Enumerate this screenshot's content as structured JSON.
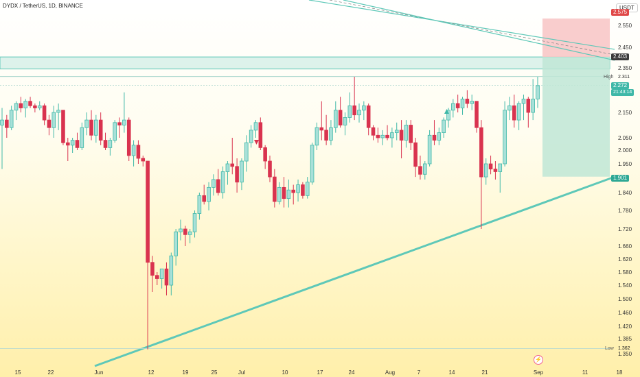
{
  "header": {
    "title": "DYDX / TetherUS, 1D, BINANCE",
    "currency": "USDT"
  },
  "price_axis": {
    "ticks": [
      "2.550",
      "2.450",
      "2.350",
      "2.150",
      "2.050",
      "2.000",
      "1.950",
      "1.840",
      "1.780",
      "1.720",
      "1.660",
      "1.620",
      "1.580",
      "1.540",
      "1.500",
      "1.460",
      "1.420",
      "1.385",
      "1.350"
    ],
    "labels": {
      "target": "2.575",
      "zone_top": "2.403",
      "high_tag": "High",
      "high": "2.311",
      "last": "2.272",
      "countdown": "21:43:14",
      "stop": "1.901",
      "low_tag": "Low",
      "low": "1.362"
    }
  },
  "time_axis": {
    "ticks": [
      "15",
      "22",
      "Jun",
      "12",
      "19",
      "25",
      "Jul",
      "10",
      "17",
      "24",
      "Aug",
      "7",
      "14",
      "21",
      "Sep",
      "11",
      "18"
    ]
  },
  "colors": {
    "up": "#3fb8a8",
    "down": "#d9334f",
    "zone": "#8fd6cc",
    "trendline": "#5ec8b8",
    "stop_zone": "#f8c4c4",
    "target_zone": "#bfe6d6"
  },
  "chart_data": {
    "type": "candlestick",
    "symbol": "DYDX / TetherUS",
    "timeframe": "1D",
    "exchange": "BINANCE",
    "x_range": [
      "May 15",
      "Sep 18"
    ],
    "y_range": [
      1.35,
      2.6
    ],
    "ohlc": [
      [
        2.1,
        2.17,
        1.93,
        2.12
      ],
      [
        2.12,
        2.14,
        2.05,
        2.09
      ],
      [
        2.09,
        2.18,
        2.08,
        2.16
      ],
      [
        2.16,
        2.2,
        2.12,
        2.19
      ],
      [
        2.19,
        2.22,
        2.15,
        2.17
      ],
      [
        2.17,
        2.21,
        2.13,
        2.2
      ],
      [
        2.2,
        2.22,
        2.17,
        2.18
      ],
      [
        2.18,
        2.19,
        2.15,
        2.17
      ],
      [
        2.17,
        2.2,
        2.16,
        2.18
      ],
      [
        2.18,
        2.19,
        2.1,
        2.12
      ],
      [
        2.12,
        2.14,
        2.06,
        2.09
      ],
      [
        2.09,
        2.18,
        2.05,
        2.15
      ],
      [
        2.15,
        2.19,
        2.08,
        2.16
      ],
      [
        2.16,
        2.16,
        2.02,
        2.03
      ],
      [
        2.03,
        2.05,
        1.96,
        2.02
      ],
      [
        2.02,
        2.05,
        1.99,
        2.04
      ],
      [
        2.04,
        2.07,
        2.0,
        2.01
      ],
      [
        2.01,
        2.11,
        2.0,
        2.09
      ],
      [
        2.09,
        2.15,
        2.06,
        2.12
      ],
      [
        2.12,
        2.16,
        2.04,
        2.06
      ],
      [
        2.06,
        2.14,
        2.03,
        2.12
      ],
      [
        2.12,
        2.15,
        2.02,
        2.04
      ],
      [
        2.04,
        2.07,
        2.0,
        2.01
      ],
      [
        2.01,
        2.05,
        1.98,
        2.04
      ],
      [
        2.04,
        2.12,
        2.03,
        2.11
      ],
      [
        2.11,
        2.13,
        2.05,
        2.1
      ],
      [
        2.1,
        2.24,
        2.07,
        2.12
      ],
      [
        2.12,
        2.13,
        1.96,
        1.98
      ],
      [
        1.98,
        2.04,
        1.94,
        2.02
      ],
      [
        2.02,
        2.04,
        1.95,
        1.97
      ],
      [
        1.97,
        1.98,
        1.94,
        1.96
      ],
      [
        1.96,
        1.96,
        1.36,
        1.61
      ],
      [
        1.61,
        1.63,
        1.52,
        1.57
      ],
      [
        1.57,
        1.58,
        1.54,
        1.56
      ],
      [
        1.56,
        1.59,
        1.53,
        1.59
      ],
      [
        1.59,
        1.61,
        1.51,
        1.54
      ],
      [
        1.54,
        1.64,
        1.51,
        1.63
      ],
      [
        1.63,
        1.72,
        1.6,
        1.71
      ],
      [
        1.71,
        1.75,
        1.68,
        1.72
      ],
      [
        1.72,
        1.73,
        1.66,
        1.7
      ],
      [
        1.7,
        1.72,
        1.67,
        1.71
      ],
      [
        1.71,
        1.78,
        1.69,
        1.77
      ],
      [
        1.77,
        1.84,
        1.75,
        1.83
      ],
      [
        1.83,
        1.87,
        1.8,
        1.81
      ],
      [
        1.81,
        1.88,
        1.78,
        1.86
      ],
      [
        1.86,
        1.91,
        1.83,
        1.89
      ],
      [
        1.89,
        1.93,
        1.83,
        1.84
      ],
      [
        1.84,
        1.94,
        1.82,
        1.92
      ],
      [
        1.92,
        1.96,
        1.87,
        1.95
      ],
      [
        1.95,
        2.05,
        1.91,
        1.94
      ],
      [
        1.94,
        1.97,
        1.84,
        1.88
      ],
      [
        1.88,
        1.97,
        1.85,
        1.96
      ],
      [
        1.96,
        2.06,
        1.92,
        2.03
      ],
      [
        2.03,
        2.1,
        2.01,
        2.08
      ],
      [
        2.08,
        2.12,
        2.05,
        2.11
      ],
      [
        2.11,
        2.13,
        2.0,
        2.01
      ],
      [
        2.01,
        2.02,
        1.93,
        1.96
      ],
      [
        1.96,
        1.98,
        1.88,
        1.9
      ],
      [
        1.9,
        1.93,
        1.79,
        1.81
      ],
      [
        1.81,
        1.88,
        1.8,
        1.86
      ],
      [
        1.86,
        1.9,
        1.79,
        1.82
      ],
      [
        1.82,
        1.89,
        1.79,
        1.85
      ],
      [
        1.85,
        1.87,
        1.8,
        1.84
      ],
      [
        1.84,
        1.89,
        1.81,
        1.87
      ],
      [
        1.87,
        1.88,
        1.82,
        1.83
      ],
      [
        1.83,
        1.9,
        1.82,
        1.88
      ],
      [
        1.88,
        2.03,
        1.87,
        2.02
      ],
      [
        2.02,
        2.11,
        2.0,
        2.09
      ],
      [
        2.09,
        2.2,
        2.04,
        2.08
      ],
      [
        2.08,
        2.14,
        2.02,
        2.04
      ],
      [
        2.04,
        2.12,
        2.02,
        2.09
      ],
      [
        2.09,
        2.2,
        2.07,
        2.16
      ],
      [
        2.16,
        2.22,
        2.09,
        2.1
      ],
      [
        2.1,
        2.15,
        2.06,
        2.13
      ],
      [
        2.13,
        2.24,
        2.11,
        2.18
      ],
      [
        2.18,
        2.31,
        2.12,
        2.14
      ],
      [
        2.14,
        2.19,
        2.11,
        2.16
      ],
      [
        2.16,
        2.2,
        2.12,
        2.18
      ],
      [
        2.18,
        2.19,
        2.06,
        2.09
      ],
      [
        2.09,
        2.1,
        2.04,
        2.06
      ],
      [
        2.06,
        2.09,
        2.03,
        2.05
      ],
      [
        2.05,
        2.08,
        2.02,
        2.06
      ],
      [
        2.06,
        2.1,
        2.04,
        2.05
      ],
      [
        2.05,
        2.09,
        2.01,
        2.07
      ],
      [
        2.07,
        2.11,
        2.04,
        2.08
      ],
      [
        2.08,
        2.12,
        1.97,
        2.04
      ],
      [
        2.04,
        2.12,
        2.01,
        2.1
      ],
      [
        2.1,
        2.12,
        2.0,
        2.03
      ],
      [
        2.03,
        2.05,
        1.9,
        1.94
      ],
      [
        1.94,
        1.98,
        1.89,
        1.91
      ],
      [
        1.91,
        1.96,
        1.89,
        1.95
      ],
      [
        1.95,
        2.08,
        1.94,
        2.06
      ],
      [
        2.06,
        2.12,
        2.02,
        2.04
      ],
      [
        2.04,
        2.09,
        2.02,
        2.07
      ],
      [
        2.07,
        2.13,
        2.05,
        2.12
      ],
      [
        2.12,
        2.17,
        2.09,
        2.16
      ],
      [
        2.16,
        2.21,
        2.13,
        2.19
      ],
      [
        2.19,
        2.23,
        2.15,
        2.17
      ],
      [
        2.17,
        2.22,
        2.14,
        2.21
      ],
      [
        2.21,
        2.25,
        2.17,
        2.19
      ],
      [
        2.19,
        2.23,
        2.16,
        2.2
      ],
      [
        2.2,
        2.2,
        2.07,
        2.09
      ],
      [
        2.09,
        2.12,
        1.72,
        1.9
      ],
      [
        1.9,
        1.97,
        1.87,
        1.95
      ],
      [
        1.95,
        1.98,
        1.91,
        1.93
      ],
      [
        1.93,
        1.96,
        1.89,
        1.92
      ],
      [
        1.92,
        1.94,
        1.84,
        1.95
      ],
      [
        1.95,
        2.2,
        1.94,
        2.16
      ],
      [
        2.16,
        2.22,
        2.12,
        2.18
      ],
      [
        2.18,
        2.23,
        2.09,
        2.12
      ],
      [
        2.12,
        2.2,
        2.08,
        2.19
      ],
      [
        2.19,
        2.23,
        2.12,
        2.21
      ],
      [
        2.21,
        2.22,
        2.09,
        2.15
      ],
      [
        2.15,
        2.3,
        2.12,
        2.21
      ],
      [
        2.21,
        2.31,
        2.17,
        2.27
      ]
    ]
  }
}
